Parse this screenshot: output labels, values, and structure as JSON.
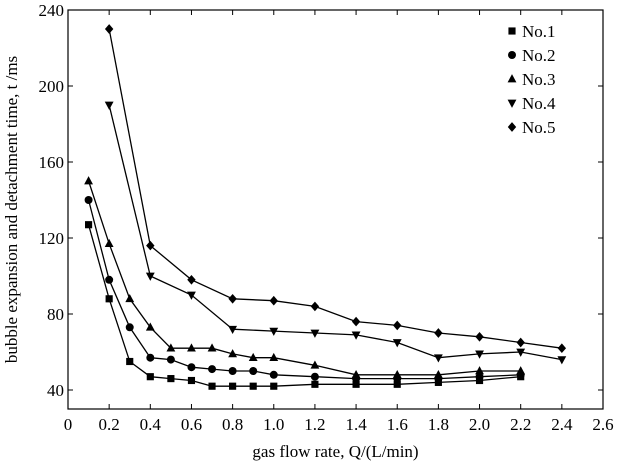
{
  "chart_data": {
    "type": "line",
    "title": "",
    "xlabel": "gas flow rate, Q/(L/min)",
    "ylabel": "bubble expansion and detachment time, t /ms",
    "xlim": [
      0,
      2.6
    ],
    "ylim": [
      30,
      240
    ],
    "x_ticks": [
      "0",
      "0.2",
      "0.4",
      "0.6",
      "0.8",
      "1.0",
      "1.2",
      "1.4",
      "1.6",
      "1.8",
      "2.0",
      "2.2",
      "2.4",
      "2.6"
    ],
    "x_tick_values": [
      0,
      0.2,
      0.4,
      0.6,
      0.8,
      1.0,
      1.2,
      1.4,
      1.6,
      1.8,
      2.0,
      2.2,
      2.4,
      2.6
    ],
    "y_ticks": [
      "40",
      "80",
      "120",
      "160",
      "200",
      "240"
    ],
    "y_tick_values": [
      40,
      80,
      120,
      160,
      200,
      240
    ],
    "grid": false,
    "legend_position": "top-right",
    "series": [
      {
        "name": "No.1",
        "marker": "square",
        "color": "#000000",
        "x": [
          0.1,
          0.2,
          0.3,
          0.4,
          0.5,
          0.6,
          0.7,
          0.8,
          0.9,
          1.0,
          1.2,
          1.4,
          1.6,
          1.8,
          2.0,
          2.2
        ],
        "y": [
          127,
          88,
          55,
          47,
          46,
          45,
          42,
          42,
          42,
          42,
          43,
          43,
          43,
          44,
          45,
          47
        ]
      },
      {
        "name": "No.2",
        "marker": "circle",
        "color": "#000000",
        "x": [
          0.1,
          0.2,
          0.3,
          0.4,
          0.5,
          0.6,
          0.7,
          0.8,
          0.9,
          1.0,
          1.2,
          1.4,
          1.6,
          1.8,
          2.0,
          2.2
        ],
        "y": [
          140,
          98,
          73,
          57,
          56,
          52,
          51,
          50,
          50,
          48,
          47,
          46,
          46,
          46,
          47,
          48
        ]
      },
      {
        "name": "No.3",
        "marker": "triangle-up",
        "color": "#000000",
        "x": [
          0.1,
          0.2,
          0.3,
          0.4,
          0.5,
          0.6,
          0.7,
          0.8,
          0.9,
          1.0,
          1.2,
          1.4,
          1.6,
          1.8,
          2.0,
          2.2
        ],
        "y": [
          150,
          117,
          88,
          73,
          62,
          62,
          62,
          59,
          57,
          57,
          53,
          48,
          48,
          48,
          50,
          50
        ]
      },
      {
        "name": "No.4",
        "marker": "triangle-down",
        "color": "#000000",
        "x": [
          0.2,
          0.4,
          0.6,
          0.8,
          1.0,
          1.2,
          1.4,
          1.6,
          1.8,
          2.0,
          2.2,
          2.4
        ],
        "y": [
          190,
          100,
          90,
          72,
          71,
          70,
          69,
          65,
          57,
          59,
          60,
          56
        ]
      },
      {
        "name": "No.5",
        "marker": "diamond",
        "color": "#000000",
        "x": [
          0.2,
          0.4,
          0.6,
          0.8,
          1.0,
          1.2,
          1.4,
          1.6,
          1.8,
          2.0,
          2.2,
          2.4
        ],
        "y": [
          230,
          116,
          98,
          88,
          87,
          84,
          76,
          74,
          70,
          68,
          65,
          62
        ]
      }
    ]
  }
}
